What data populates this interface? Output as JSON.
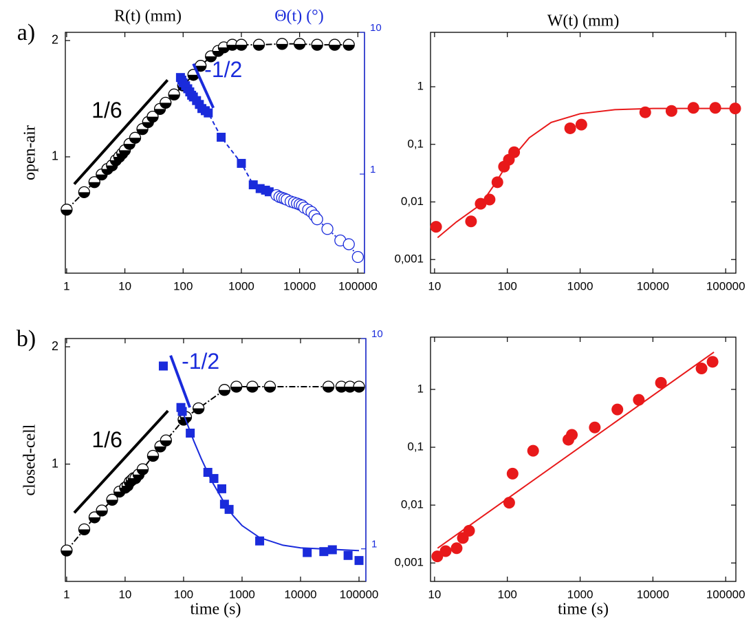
{
  "chart_data": [
    {
      "type": "scatter",
      "panel_label": "a)",
      "ylabel": "open-air",
      "title": "R(t) (mm)",
      "y2label": "Θ(t) (°)",
      "xscale": "log",
      "yscale": "log",
      "y2scale": "log",
      "xlim": [
        0.95,
        130000
      ],
      "xticks": [
        1,
        10,
        100,
        1000,
        10000,
        100000
      ],
      "ylim": [
        0.5,
        2.1
      ],
      "yticks": [
        1,
        2
      ],
      "y2lim": [
        0.2,
        10
      ],
      "y2ticks": [
        1,
        10
      ],
      "series": [
        {
          "color": "#000000",
          "marker": "half-circle",
          "line": "dashdot",
          "x": [
            1,
            2,
            3,
            4,
            5,
            6,
            7,
            8,
            9,
            10,
            12,
            15,
            20,
            25,
            30,
            40,
            50,
            70,
            100,
            150,
            200,
            300,
            400,
            500,
            700,
            1000,
            2000,
            5000,
            10000,
            20000,
            40000,
            70000
          ],
          "values": [
            0.73,
            0.81,
            0.86,
            0.9,
            0.93,
            0.95,
            0.98,
            1.0,
            1.02,
            1.04,
            1.08,
            1.12,
            1.18,
            1.23,
            1.27,
            1.33,
            1.38,
            1.45,
            1.53,
            1.63,
            1.72,
            1.82,
            1.88,
            1.92,
            1.95,
            1.95,
            1.95,
            1.96,
            1.96,
            1.95,
            1.95,
            1.95
          ]
        },
        {
          "color": "#1a2bdb",
          "marker": "square",
          "line": "dashed",
          "axis": "y2",
          "x": [
            90,
            95,
            100,
            110,
            120,
            130,
            140,
            150,
            170,
            190,
            210,
            240,
            270,
            450,
            1000,
            1600,
            2100,
            2600,
            3000
          ],
          "values": [
            4.8,
            4.6,
            4.4,
            4.2,
            4.0,
            3.8,
            3.6,
            3.5,
            3.3,
            3.1,
            2.9,
            2.8,
            2.7,
            1.82,
            1.19,
            0.84,
            0.79,
            0.77,
            0.75
          ]
        },
        {
          "color": "#1a2bdb",
          "marker": "open-circle",
          "line": "dotted",
          "axis": "y2",
          "x": [
            4000,
            4500,
            5000,
            5500,
            6000,
            7000,
            8000,
            9000,
            10000,
            11000,
            12000,
            14000,
            16000,
            18000,
            20000,
            30000,
            50000,
            70000,
            100000
          ],
          "values": [
            0.71,
            0.69,
            0.68,
            0.67,
            0.66,
            0.64,
            0.63,
            0.62,
            0.61,
            0.6,
            0.58,
            0.56,
            0.54,
            0.51,
            0.48,
            0.41,
            0.34,
            0.32,
            0.26
          ]
        }
      ],
      "guides": [
        {
          "label": "1/6",
          "color": "#000000",
          "x": [
            1.35,
            54
          ],
          "values": [
            0.85,
            1.58
          ]
        },
        {
          "label": "-1/2",
          "color": "#1a2bdb",
          "axis": "y2",
          "x": [
            150,
            330
          ],
          "values": [
            6.0,
            2.93
          ]
        }
      ]
    },
    {
      "type": "scatter",
      "title": "W(t) (mm)",
      "xscale": "log",
      "yscale": "log",
      "xlim": [
        8.8,
        138000
      ],
      "xticks": [
        10,
        100,
        1000,
        10000,
        100000
      ],
      "ylim": [
        0.00058,
        8.8
      ],
      "yticks": [
        {
          "value": 0.001,
          "label": "0,001"
        },
        {
          "value": 0.01,
          "label": "0,01"
        },
        {
          "value": 0.1,
          "label": "0,1"
        },
        1
      ],
      "series": [
        {
          "color": "#e8191a",
          "marker": "circle",
          "x": [
            10.5,
            31.7,
            43,
            57,
            73,
            90,
            105,
            124,
            730,
            1040,
            7850,
            18000,
            36000,
            72000,
            135000
          ],
          "values": [
            0.0037,
            0.0046,
            0.0093,
            0.011,
            0.022,
            0.041,
            0.054,
            0.073,
            0.19,
            0.22,
            0.36,
            0.38,
            0.43,
            0.43,
            0.42
          ]
        },
        {
          "color": "#e8191a",
          "marker": "none",
          "line": "solid",
          "x": [
            11,
            20,
            43,
            70,
            100,
            200,
            400,
            1000,
            3000,
            10000,
            130000
          ],
          "values": [
            0.0024,
            0.0045,
            0.009,
            0.022,
            0.046,
            0.13,
            0.24,
            0.34,
            0.4,
            0.42,
            0.42
          ]
        }
      ]
    },
    {
      "type": "scatter",
      "panel_label": "b)",
      "ylabel": "closed-cell",
      "xlabel": "time (s)",
      "xscale": "log",
      "yscale": "log",
      "y2scale": "log",
      "xlim": [
        0.95,
        131000
      ],
      "xticks": [
        1,
        10,
        100,
        1000,
        10000,
        100000
      ],
      "ylim": [
        0.5,
        2.1
      ],
      "yticks": [
        1,
        2
      ],
      "y2lim": [
        0.7,
        10
      ],
      "y2ticks": [
        1,
        10
      ],
      "series": [
        {
          "color": "#000000",
          "marker": "half-circle",
          "line": "dashdot",
          "x": [
            1,
            2,
            3,
            4,
            6,
            8,
            10,
            11,
            12,
            13,
            14,
            15,
            17,
            20,
            30,
            40,
            50,
            100,
            110,
            180,
            500,
            800,
            1500,
            3000,
            30000,
            50000,
            70000,
            100000
          ],
          "values": [
            0.6,
            0.68,
            0.73,
            0.76,
            0.81,
            0.85,
            0.87,
            0.88,
            0.9,
            0.91,
            0.92,
            0.92,
            0.94,
            0.97,
            1.05,
            1.11,
            1.15,
            1.3,
            1.32,
            1.39,
            1.55,
            1.58,
            1.58,
            1.58,
            1.58,
            1.58,
            1.58,
            1.58
          ]
        },
        {
          "color": "#1a2bdb",
          "marker": "square",
          "axis": "y2",
          "x": [
            45,
            90,
            95,
            130,
            260,
            330,
            450,
            500,
            600,
            2000,
            13000,
            25000,
            35000,
            65000,
            100000
          ],
          "values": [
            7.4,
            4.7,
            4.5,
            3.55,
            2.31,
            2.16,
            1.93,
            1.63,
            1.54,
            1.09,
            0.96,
            0.97,
            0.99,
            0.93,
            0.88
          ]
        },
        {
          "color": "#1a2bdb",
          "marker": "none",
          "line": "solid",
          "axis": "y2",
          "x": [
            90,
            150,
            200,
            300,
            500,
            700,
            1000,
            2000,
            5000,
            10000,
            100000
          ],
          "values": [
            4.7,
            3.25,
            2.69,
            2.11,
            1.65,
            1.44,
            1.29,
            1.13,
            1.04,
            1.01,
            0.98
          ]
        }
      ],
      "guides": [
        {
          "label": "1/6",
          "color": "#000000",
          "x": [
            1.35,
            54
          ],
          "values": [
            0.75,
            1.37
          ]
        },
        {
          "label": "-1/2",
          "color": "#1a2bdb",
          "axis": "y2",
          "x": [
            60,
            128
          ],
          "values": [
            8.3,
            4.7
          ]
        }
      ]
    },
    {
      "type": "scatter",
      "xlabel": "time (s)",
      "xscale": "log",
      "yscale": "log",
      "xlim": [
        8.8,
        138000
      ],
      "xticks": [
        10,
        100,
        1000,
        10000,
        100000
      ],
      "ylim": [
        0.00048,
        8.0
      ],
      "yticks": [
        {
          "value": 0.001,
          "label": "0,001"
        },
        {
          "value": 0.01,
          "label": "0,01"
        },
        {
          "value": 0.1,
          "label": "0,1"
        },
        1
      ],
      "series": [
        {
          "color": "#e8191a",
          "marker": "circle",
          "x": [
            10.9,
            14.2,
            20.1,
            24.5,
            29.8,
            106,
            118,
            226,
            690,
            770,
            1590,
            3250,
            6400,
            12900,
            46600,
            66000
          ],
          "values": [
            0.0013,
            0.0016,
            0.0018,
            0.0027,
            0.0036,
            0.011,
            0.035,
            0.087,
            0.135,
            0.164,
            0.22,
            0.45,
            0.66,
            1.3,
            2.3,
            3.0
          ]
        },
        {
          "color": "#e8191a",
          "marker": "none",
          "line": "solid",
          "x": [
            11,
            69000
          ],
          "values": [
            0.0018,
            4.4
          ]
        }
      ]
    }
  ]
}
